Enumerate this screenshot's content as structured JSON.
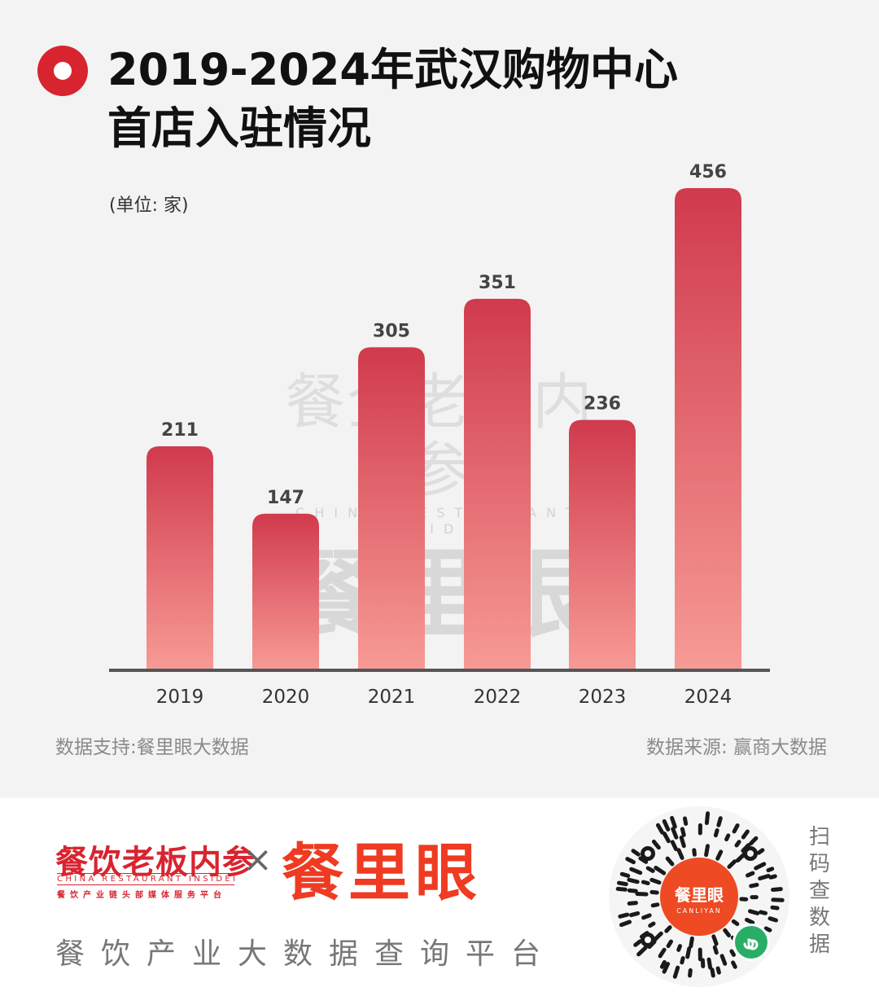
{
  "title_lines": [
    "2019-2024年武汉购物中心",
    "首店入驻情况"
  ],
  "unit_label": "(单位: 家)",
  "footnote_left": "数据支持:餐里眼大数据",
  "footnote_right": "数据来源: 赢商大数据",
  "watermark": {
    "top": "餐企老板内参",
    "sub": "CHINA RESTAURANT INSIDER",
    "main": "餐里眼"
  },
  "footer": {
    "brand_cn": "餐饮老板内参",
    "brand_en": "CHINA RESTAURANT INSIDER",
    "brand_tag": "餐饮产业链头部媒体服务平台",
    "times": "×",
    "brand_big": "餐里眼",
    "slogan": "餐饮产业大数据查询平台",
    "qr_center_cn": "餐里眼",
    "qr_center_en": "CANLIYAN",
    "scan_text": [
      "扫",
      "码",
      "查",
      "数",
      "据"
    ]
  },
  "colors": {
    "accent": "#d8242f",
    "bar_top": "#d03a4d",
    "bar_bottom": "#f79a95",
    "brand_orange": "#ee3b22"
  },
  "icons": {
    "title_icon": "red-ring-icon",
    "qr": "qr-code-icon",
    "mini_program": "mini-program-icon"
  },
  "chart_data": {
    "type": "bar",
    "categories": [
      "2019",
      "2020",
      "2021",
      "2022",
      "2023",
      "2024"
    ],
    "values": [
      211,
      147,
      305,
      351,
      236,
      456
    ],
    "title": "2019-2024年武汉购物中心首店入驻情况",
    "ylabel": "(单位: 家)",
    "xlabel": "",
    "ylim": [
      0,
      456
    ],
    "grid": false,
    "data_labels": true
  }
}
